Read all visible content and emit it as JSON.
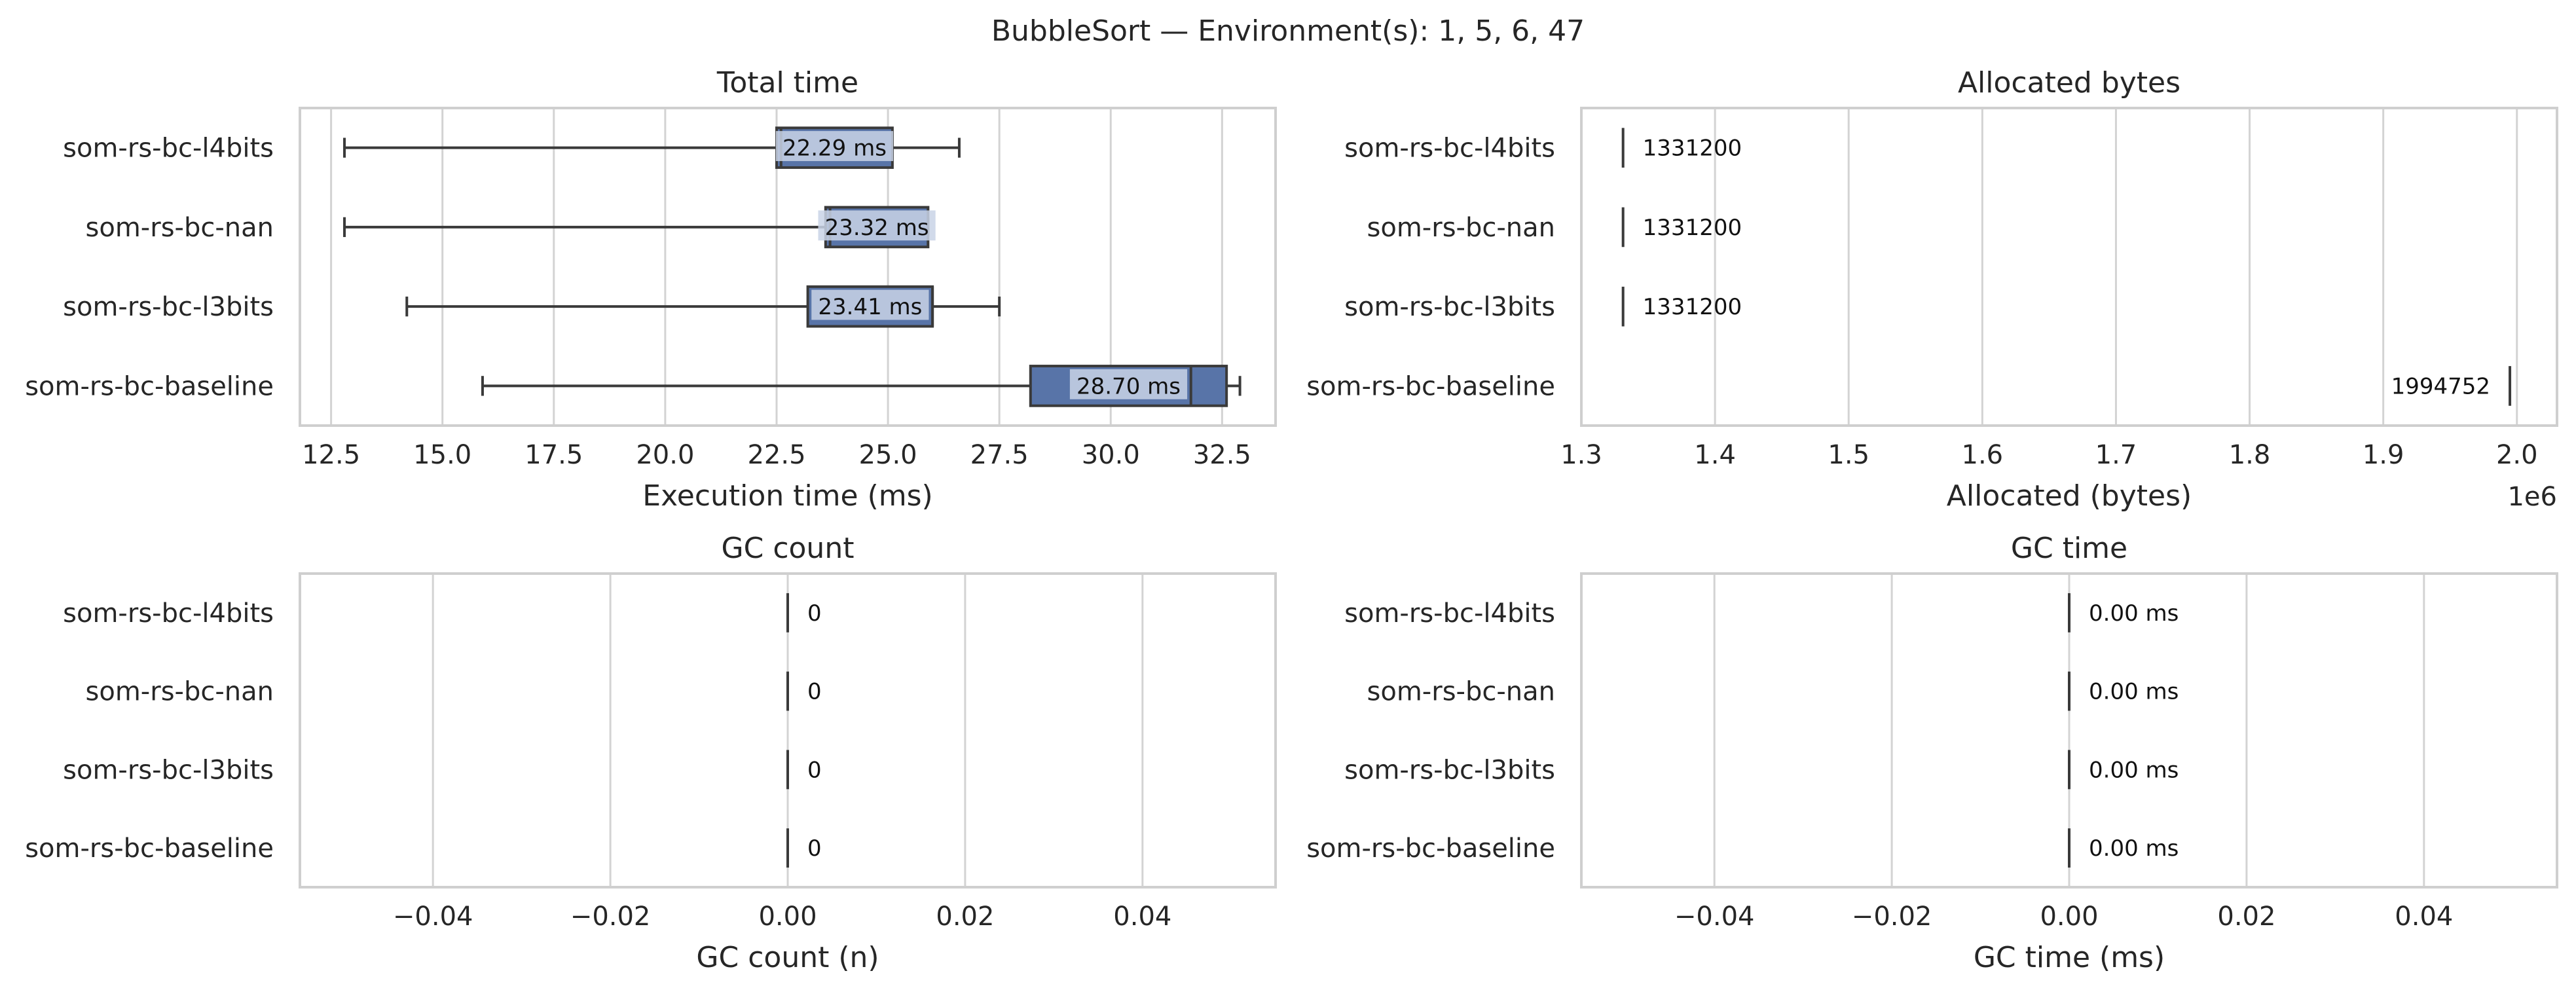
{
  "suptitle": "BubbleSort — Environment(s): 1, 5, 6, 47",
  "colors": {
    "box": "#5874a8",
    "line": "#3a3a3a",
    "grid": "#d3d3d3",
    "frame": "#cfcfcf",
    "label_bg": "#c9d3e6"
  },
  "chart_data": [
    {
      "type": "box",
      "title": "Total time",
      "xlabel": "Execution time (ms)",
      "xlim": [
        11.8,
        33.7
      ],
      "ticks": [
        12.5,
        15.0,
        17.5,
        20.0,
        22.5,
        25.0,
        27.5,
        30.0,
        32.5
      ],
      "tick_labels": [
        "12.5",
        "15.0",
        "17.5",
        "20.0",
        "22.5",
        "25.0",
        "27.5",
        "30.0",
        "32.5"
      ],
      "categories": [
        "som-rs-bc-l4bits",
        "som-rs-bc-nan",
        "som-rs-bc-l3bits",
        "som-rs-bc-baseline"
      ],
      "series": [
        {
          "whislo": 12.8,
          "q1": 22.5,
          "med": 22.6,
          "q3": 25.1,
          "whishi": 26.6,
          "label": "22.29 ms"
        },
        {
          "whislo": 12.8,
          "q1": 23.6,
          "med": 23.7,
          "q3": 25.9,
          "whishi": 25.9,
          "label": "23.32 ms"
        },
        {
          "whislo": 14.2,
          "q1": 23.2,
          "med": 26.0,
          "q3": 26.0,
          "whishi": 27.5,
          "label": "23.41 ms"
        },
        {
          "whislo": 15.9,
          "q1": 28.2,
          "med": 31.8,
          "q3": 32.6,
          "whishi": 32.9,
          "label": "28.70 ms"
        }
      ]
    },
    {
      "type": "box",
      "title": "Allocated bytes",
      "xlabel": "Allocated (bytes)",
      "offset_text": "1e6",
      "xlim": [
        1.3,
        2.03
      ],
      "ticks": [
        1.3,
        1.4,
        1.5,
        1.6,
        1.7,
        1.8,
        1.9,
        2.0
      ],
      "tick_labels": [
        "1.3",
        "1.4",
        "1.5",
        "1.6",
        "1.7",
        "1.8",
        "1.9",
        "2.0"
      ],
      "categories": [
        "som-rs-bc-l4bits",
        "som-rs-bc-nan",
        "som-rs-bc-l3bits",
        "som-rs-bc-baseline"
      ],
      "series": [
        {
          "whislo": 1.3312,
          "q1": 1.3312,
          "med": 1.3312,
          "q3": 1.3312,
          "whishi": 1.3312,
          "label": "1331200"
        },
        {
          "whislo": 1.3312,
          "q1": 1.3312,
          "med": 1.3312,
          "q3": 1.3312,
          "whishi": 1.3312,
          "label": "1331200"
        },
        {
          "whislo": 1.3312,
          "q1": 1.3312,
          "med": 1.3312,
          "q3": 1.3312,
          "whishi": 1.3312,
          "label": "1331200"
        },
        {
          "whislo": 1.994752,
          "q1": 1.994752,
          "med": 1.994752,
          "q3": 1.994752,
          "whishi": 1.994752,
          "label": "1994752"
        }
      ]
    },
    {
      "type": "box",
      "title": "GC count",
      "xlabel": "GC count (n)",
      "xlim": [
        -0.055,
        0.055
      ],
      "ticks": [
        -0.04,
        -0.02,
        0.0,
        0.02,
        0.04
      ],
      "tick_labels": [
        "−0.04",
        "−0.02",
        "0.00",
        "0.02",
        "0.04"
      ],
      "categories": [
        "som-rs-bc-l4bits",
        "som-rs-bc-nan",
        "som-rs-bc-l3bits",
        "som-rs-bc-baseline"
      ],
      "series": [
        {
          "whislo": 0,
          "q1": 0,
          "med": 0,
          "q3": 0,
          "whishi": 0,
          "label": "0"
        },
        {
          "whislo": 0,
          "q1": 0,
          "med": 0,
          "q3": 0,
          "whishi": 0,
          "label": "0"
        },
        {
          "whislo": 0,
          "q1": 0,
          "med": 0,
          "q3": 0,
          "whishi": 0,
          "label": "0"
        },
        {
          "whislo": 0,
          "q1": 0,
          "med": 0,
          "q3": 0,
          "whishi": 0,
          "label": "0"
        }
      ]
    },
    {
      "type": "box",
      "title": "GC time",
      "xlabel": "GC time (ms)",
      "xlim": [
        -0.055,
        0.055
      ],
      "ticks": [
        -0.04,
        -0.02,
        0.0,
        0.02,
        0.04
      ],
      "tick_labels": [
        "−0.04",
        "−0.02",
        "0.00",
        "0.02",
        "0.04"
      ],
      "categories": [
        "som-rs-bc-l4bits",
        "som-rs-bc-nan",
        "som-rs-bc-l3bits",
        "som-rs-bc-baseline"
      ],
      "series": [
        {
          "whislo": 0,
          "q1": 0,
          "med": 0,
          "q3": 0,
          "whishi": 0,
          "label": "0.00 ms"
        },
        {
          "whislo": 0,
          "q1": 0,
          "med": 0,
          "q3": 0,
          "whishi": 0,
          "label": "0.00 ms"
        },
        {
          "whislo": 0,
          "q1": 0,
          "med": 0,
          "q3": 0,
          "whishi": 0,
          "label": "0.00 ms"
        },
        {
          "whislo": 0,
          "q1": 0,
          "med": 0,
          "q3": 0,
          "whishi": 0,
          "label": "0.00 ms"
        }
      ]
    }
  ]
}
